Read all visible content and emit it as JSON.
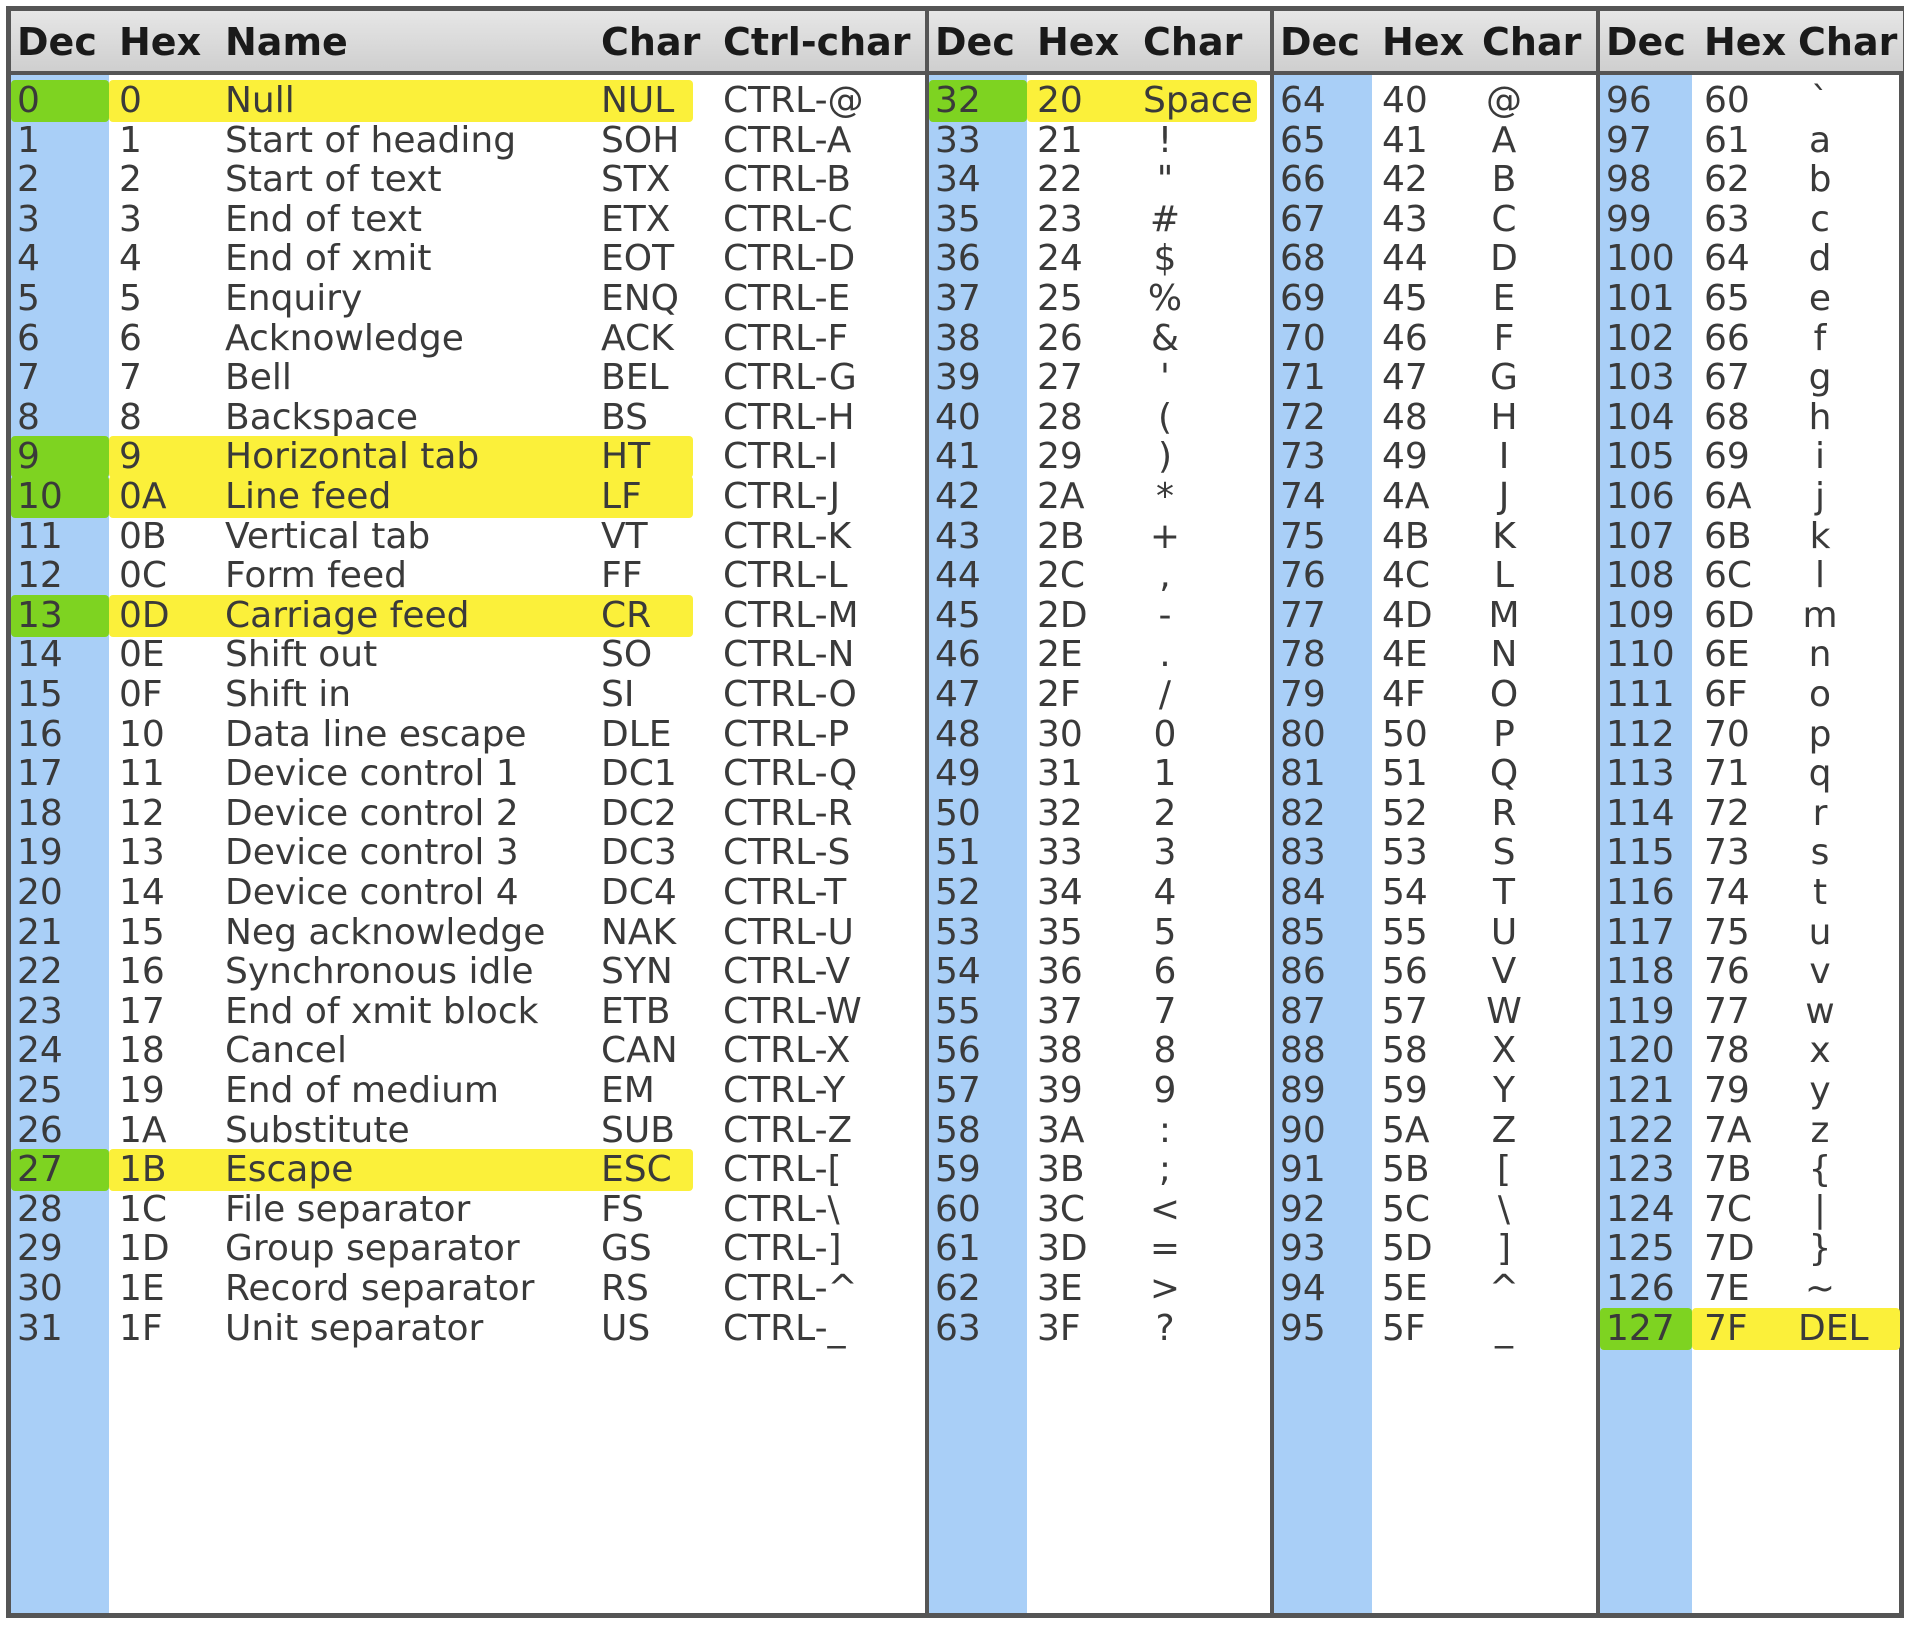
{
  "colors": {
    "dec_column": "#a9cff7",
    "highlight_yellow": "#fbf03a",
    "highlight_green": "#7ed321",
    "header_bg": "#d9d9d9",
    "border": "#555555"
  },
  "headers": {
    "control": [
      "Dec",
      "Hex",
      "Name",
      "Char",
      "Ctrl-char"
    ],
    "printable": [
      "Dec",
      "Hex",
      "Char"
    ]
  },
  "control_rows": [
    {
      "dec": "0",
      "hex": "0",
      "name": "Null",
      "char": "NUL",
      "ctrl": "CTRL-@",
      "highlight": true
    },
    {
      "dec": "1",
      "hex": "1",
      "name": "Start of heading",
      "char": "SOH",
      "ctrl": "CTRL-A",
      "highlight": false
    },
    {
      "dec": "2",
      "hex": "2",
      "name": "Start of text",
      "char": "STX",
      "ctrl": "CTRL-B",
      "highlight": false
    },
    {
      "dec": "3",
      "hex": "3",
      "name": "End of text",
      "char": "ETX",
      "ctrl": "CTRL-C",
      "highlight": false
    },
    {
      "dec": "4",
      "hex": "4",
      "name": "End of xmit",
      "char": "EOT",
      "ctrl": "CTRL-D",
      "highlight": false
    },
    {
      "dec": "5",
      "hex": "5",
      "name": "Enquiry",
      "char": "ENQ",
      "ctrl": "CTRL-E",
      "highlight": false
    },
    {
      "dec": "6",
      "hex": "6",
      "name": "Acknowledge",
      "char": "ACK",
      "ctrl": "CTRL-F",
      "highlight": false
    },
    {
      "dec": "7",
      "hex": "7",
      "name": "Bell",
      "char": "BEL",
      "ctrl": "CTRL-G",
      "highlight": false
    },
    {
      "dec": "8",
      "hex": "8",
      "name": "Backspace",
      "char": "BS",
      "ctrl": "CTRL-H",
      "highlight": false
    },
    {
      "dec": "9",
      "hex": "9",
      "name": "Horizontal tab",
      "char": "HT",
      "ctrl": "CTRL-I",
      "highlight": true
    },
    {
      "dec": "10",
      "hex": "0A",
      "name": "Line feed",
      "char": "LF",
      "ctrl": "CTRL-J",
      "highlight": true
    },
    {
      "dec": "11",
      "hex": "0B",
      "name": "Vertical tab",
      "char": "VT",
      "ctrl": "CTRL-K",
      "highlight": false
    },
    {
      "dec": "12",
      "hex": "0C",
      "name": "Form feed",
      "char": "FF",
      "ctrl": "CTRL-L",
      "highlight": false
    },
    {
      "dec": "13",
      "hex": "0D",
      "name": "Carriage feed",
      "char": "CR",
      "ctrl": "CTRL-M",
      "highlight": true
    },
    {
      "dec": "14",
      "hex": "0E",
      "name": "Shift out",
      "char": "SO",
      "ctrl": "CTRL-N",
      "highlight": false
    },
    {
      "dec": "15",
      "hex": "0F",
      "name": "Shift in",
      "char": "SI",
      "ctrl": "CTRL-O",
      "highlight": false
    },
    {
      "dec": "16",
      "hex": "10",
      "name": "Data line escape",
      "char": "DLE",
      "ctrl": "CTRL-P",
      "highlight": false
    },
    {
      "dec": "17",
      "hex": "11",
      "name": "Device control 1",
      "char": "DC1",
      "ctrl": "CTRL-Q",
      "highlight": false
    },
    {
      "dec": "18",
      "hex": "12",
      "name": "Device control 2",
      "char": "DC2",
      "ctrl": "CTRL-R",
      "highlight": false
    },
    {
      "dec": "19",
      "hex": "13",
      "name": "Device control 3",
      "char": "DC3",
      "ctrl": "CTRL-S",
      "highlight": false
    },
    {
      "dec": "20",
      "hex": "14",
      "name": "Device control 4",
      "char": "DC4",
      "ctrl": "CTRL-T",
      "highlight": false
    },
    {
      "dec": "21",
      "hex": "15",
      "name": "Neg acknowledge",
      "char": "NAK",
      "ctrl": "CTRL-U",
      "highlight": false
    },
    {
      "dec": "22",
      "hex": "16",
      "name": "Synchronous idle",
      "char": "SYN",
      "ctrl": "CTRL-V",
      "highlight": false
    },
    {
      "dec": "23",
      "hex": "17",
      "name": "End of xmit block",
      "char": "ETB",
      "ctrl": "CTRL-W",
      "highlight": false
    },
    {
      "dec": "24",
      "hex": "18",
      "name": "Cancel",
      "char": "CAN",
      "ctrl": "CTRL-X",
      "highlight": false
    },
    {
      "dec": "25",
      "hex": "19",
      "name": "End of medium",
      "char": "EM",
      "ctrl": "CTRL-Y",
      "highlight": false
    },
    {
      "dec": "26",
      "hex": "1A",
      "name": "Substitute",
      "char": "SUB",
      "ctrl": "CTRL-Z",
      "highlight": false
    },
    {
      "dec": "27",
      "hex": "1B",
      "name": "Escape",
      "char": "ESC",
      "ctrl": "CTRL-[",
      "highlight": true
    },
    {
      "dec": "28",
      "hex": "1C",
      "name": "File separator",
      "char": "FS",
      "ctrl": "CTRL-\\",
      "highlight": false
    },
    {
      "dec": "29",
      "hex": "1D",
      "name": "Group separator",
      "char": "GS",
      "ctrl": "CTRL-]",
      "highlight": false
    },
    {
      "dec": "30",
      "hex": "1E",
      "name": "Record separator",
      "char": "RS",
      "ctrl": "CTRL-^",
      "highlight": false
    },
    {
      "dec": "31",
      "hex": "1F",
      "name": "Unit separator",
      "char": "US",
      "ctrl": "CTRL-_",
      "highlight": false
    }
  ],
  "printable_blocks": [
    {
      "rows": [
        {
          "dec": "32",
          "hex": "20",
          "char": "Space",
          "highlight": true
        },
        {
          "dec": "33",
          "hex": "21",
          "char": "!",
          "highlight": false
        },
        {
          "dec": "34",
          "hex": "22",
          "char": "\"",
          "highlight": false
        },
        {
          "dec": "35",
          "hex": "23",
          "char": "#",
          "highlight": false
        },
        {
          "dec": "36",
          "hex": "24",
          "char": "$",
          "highlight": false
        },
        {
          "dec": "37",
          "hex": "25",
          "char": "%",
          "highlight": false
        },
        {
          "dec": "38",
          "hex": "26",
          "char": "&",
          "highlight": false
        },
        {
          "dec": "39",
          "hex": "27",
          "char": "'",
          "highlight": false
        },
        {
          "dec": "40",
          "hex": "28",
          "char": "(",
          "highlight": false
        },
        {
          "dec": "41",
          "hex": "29",
          "char": ")",
          "highlight": false
        },
        {
          "dec": "42",
          "hex": "2A",
          "char": "*",
          "highlight": false
        },
        {
          "dec": "43",
          "hex": "2B",
          "char": "+",
          "highlight": false
        },
        {
          "dec": "44",
          "hex": "2C",
          "char": ",",
          "highlight": false
        },
        {
          "dec": "45",
          "hex": "2D",
          "char": "-",
          "highlight": false
        },
        {
          "dec": "46",
          "hex": "2E",
          "char": ".",
          "highlight": false
        },
        {
          "dec": "47",
          "hex": "2F",
          "char": "/",
          "highlight": false
        },
        {
          "dec": "48",
          "hex": "30",
          "char": "0",
          "highlight": false
        },
        {
          "dec": "49",
          "hex": "31",
          "char": "1",
          "highlight": false
        },
        {
          "dec": "50",
          "hex": "32",
          "char": "2",
          "highlight": false
        },
        {
          "dec": "51",
          "hex": "33",
          "char": "3",
          "highlight": false
        },
        {
          "dec": "52",
          "hex": "34",
          "char": "4",
          "highlight": false
        },
        {
          "dec": "53",
          "hex": "35",
          "char": "5",
          "highlight": false
        },
        {
          "dec": "54",
          "hex": "36",
          "char": "6",
          "highlight": false
        },
        {
          "dec": "55",
          "hex": "37",
          "char": "7",
          "highlight": false
        },
        {
          "dec": "56",
          "hex": "38",
          "char": "8",
          "highlight": false
        },
        {
          "dec": "57",
          "hex": "39",
          "char": "9",
          "highlight": false
        },
        {
          "dec": "58",
          "hex": "3A",
          "char": ":",
          "highlight": false
        },
        {
          "dec": "59",
          "hex": "3B",
          "char": ";",
          "highlight": false
        },
        {
          "dec": "60",
          "hex": "3C",
          "char": "<",
          "highlight": false
        },
        {
          "dec": "61",
          "hex": "3D",
          "char": "=",
          "highlight": false
        },
        {
          "dec": "62",
          "hex": "3E",
          "char": ">",
          "highlight": false
        },
        {
          "dec": "63",
          "hex": "3F",
          "char": "?",
          "highlight": false
        }
      ]
    },
    {
      "rows": [
        {
          "dec": "64",
          "hex": "40",
          "char": "@",
          "highlight": false
        },
        {
          "dec": "65",
          "hex": "41",
          "char": "A",
          "highlight": false
        },
        {
          "dec": "66",
          "hex": "42",
          "char": "B",
          "highlight": false
        },
        {
          "dec": "67",
          "hex": "43",
          "char": "C",
          "highlight": false
        },
        {
          "dec": "68",
          "hex": "44",
          "char": "D",
          "highlight": false
        },
        {
          "dec": "69",
          "hex": "45",
          "char": "E",
          "highlight": false
        },
        {
          "dec": "70",
          "hex": "46",
          "char": "F",
          "highlight": false
        },
        {
          "dec": "71",
          "hex": "47",
          "char": "G",
          "highlight": false
        },
        {
          "dec": "72",
          "hex": "48",
          "char": "H",
          "highlight": false
        },
        {
          "dec": "73",
          "hex": "49",
          "char": "I",
          "highlight": false
        },
        {
          "dec": "74",
          "hex": "4A",
          "char": "J",
          "highlight": false
        },
        {
          "dec": "75",
          "hex": "4B",
          "char": "K",
          "highlight": false
        },
        {
          "dec": "76",
          "hex": "4C",
          "char": "L",
          "highlight": false
        },
        {
          "dec": "77",
          "hex": "4D",
          "char": "M",
          "highlight": false
        },
        {
          "dec": "78",
          "hex": "4E",
          "char": "N",
          "highlight": false
        },
        {
          "dec": "79",
          "hex": "4F",
          "char": "O",
          "highlight": false
        },
        {
          "dec": "80",
          "hex": "50",
          "char": "P",
          "highlight": false
        },
        {
          "dec": "81",
          "hex": "51",
          "char": "Q",
          "highlight": false
        },
        {
          "dec": "82",
          "hex": "52",
          "char": "R",
          "highlight": false
        },
        {
          "dec": "83",
          "hex": "53",
          "char": "S",
          "highlight": false
        },
        {
          "dec": "84",
          "hex": "54",
          "char": "T",
          "highlight": false
        },
        {
          "dec": "85",
          "hex": "55",
          "char": "U",
          "highlight": false
        },
        {
          "dec": "86",
          "hex": "56",
          "char": "V",
          "highlight": false
        },
        {
          "dec": "87",
          "hex": "57",
          "char": "W",
          "highlight": false
        },
        {
          "dec": "88",
          "hex": "58",
          "char": "X",
          "highlight": false
        },
        {
          "dec": "89",
          "hex": "59",
          "char": "Y",
          "highlight": false
        },
        {
          "dec": "90",
          "hex": "5A",
          "char": "Z",
          "highlight": false
        },
        {
          "dec": "91",
          "hex": "5B",
          "char": "[",
          "highlight": false
        },
        {
          "dec": "92",
          "hex": "5C",
          "char": "\\",
          "highlight": false
        },
        {
          "dec": "93",
          "hex": "5D",
          "char": "]",
          "highlight": false
        },
        {
          "dec": "94",
          "hex": "5E",
          "char": "^",
          "highlight": false
        },
        {
          "dec": "95",
          "hex": "5F",
          "char": "_",
          "highlight": false
        }
      ]
    },
    {
      "rows": [
        {
          "dec": "96",
          "hex": "60",
          "char": "`",
          "highlight": false
        },
        {
          "dec": "97",
          "hex": "61",
          "char": "a",
          "highlight": false
        },
        {
          "dec": "98",
          "hex": "62",
          "char": "b",
          "highlight": false
        },
        {
          "dec": "99",
          "hex": "63",
          "char": "c",
          "highlight": false
        },
        {
          "dec": "100",
          "hex": "64",
          "char": "d",
          "highlight": false
        },
        {
          "dec": "101",
          "hex": "65",
          "char": "e",
          "highlight": false
        },
        {
          "dec": "102",
          "hex": "66",
          "char": "f",
          "highlight": false
        },
        {
          "dec": "103",
          "hex": "67",
          "char": "g",
          "highlight": false
        },
        {
          "dec": "104",
          "hex": "68",
          "char": "h",
          "highlight": false
        },
        {
          "dec": "105",
          "hex": "69",
          "char": "i",
          "highlight": false
        },
        {
          "dec": "106",
          "hex": "6A",
          "char": "j",
          "highlight": false
        },
        {
          "dec": "107",
          "hex": "6B",
          "char": "k",
          "highlight": false
        },
        {
          "dec": "108",
          "hex": "6C",
          "char": "l",
          "highlight": false
        },
        {
          "dec": "109",
          "hex": "6D",
          "char": "m",
          "highlight": false
        },
        {
          "dec": "110",
          "hex": "6E",
          "char": "n",
          "highlight": false
        },
        {
          "dec": "111",
          "hex": "6F",
          "char": "o",
          "highlight": false
        },
        {
          "dec": "112",
          "hex": "70",
          "char": "p",
          "highlight": false
        },
        {
          "dec": "113",
          "hex": "71",
          "char": "q",
          "highlight": false
        },
        {
          "dec": "114",
          "hex": "72",
          "char": "r",
          "highlight": false
        },
        {
          "dec": "115",
          "hex": "73",
          "char": "s",
          "highlight": false
        },
        {
          "dec": "116",
          "hex": "74",
          "char": "t",
          "highlight": false
        },
        {
          "dec": "117",
          "hex": "75",
          "char": "u",
          "highlight": false
        },
        {
          "dec": "118",
          "hex": "76",
          "char": "v",
          "highlight": false
        },
        {
          "dec": "119",
          "hex": "77",
          "char": "w",
          "highlight": false
        },
        {
          "dec": "120",
          "hex": "78",
          "char": "x",
          "highlight": false
        },
        {
          "dec": "121",
          "hex": "79",
          "char": "y",
          "highlight": false
        },
        {
          "dec": "122",
          "hex": "7A",
          "char": "z",
          "highlight": false
        },
        {
          "dec": "123",
          "hex": "7B",
          "char": "{",
          "highlight": false
        },
        {
          "dec": "124",
          "hex": "7C",
          "char": "|",
          "highlight": false
        },
        {
          "dec": "125",
          "hex": "7D",
          "char": "}",
          "highlight": false
        },
        {
          "dec": "126",
          "hex": "7E",
          "char": "~",
          "highlight": false
        },
        {
          "dec": "127",
          "hex": "7F",
          "char": "DEL",
          "highlight": true
        }
      ]
    }
  ]
}
